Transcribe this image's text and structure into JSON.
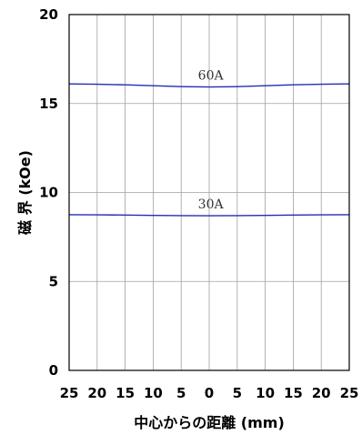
{
  "chart_data": {
    "type": "line",
    "xlabel": "中心からの距離 (mm)",
    "ylabel": "磁 界 (kOe)",
    "x_tick_labels": [
      "25",
      "20",
      "15",
      "10",
      "5",
      "0",
      "5",
      "10",
      "15",
      "20",
      "25"
    ],
    "x_ticks": [
      -25,
      -20,
      -15,
      -10,
      -5,
      0,
      5,
      10,
      15,
      20,
      25
    ],
    "xlim": [
      -25,
      25
    ],
    "ylim": [
      0,
      20
    ],
    "y_ticks": [
      0,
      5,
      10,
      15,
      20
    ],
    "y_tick_labels": [
      "0",
      "5",
      "10",
      "15",
      "20"
    ],
    "grid": true,
    "colors": {
      "series": "#1f2fb4",
      "grid": "#a0a0a0",
      "frame": "#000000"
    },
    "series": [
      {
        "name": "60A",
        "x": [
          -25,
          -20,
          -15,
          -10,
          -5,
          0,
          5,
          10,
          15,
          20,
          25
        ],
        "values": [
          16.1,
          16.08,
          16.05,
          16.0,
          15.95,
          15.93,
          15.95,
          16.0,
          16.05,
          16.08,
          16.1
        ]
      },
      {
        "name": "30A",
        "x": [
          -25,
          -20,
          -15,
          -10,
          -5,
          0,
          5,
          10,
          15,
          20,
          25
        ],
        "values": [
          8.75,
          8.74,
          8.73,
          8.71,
          8.7,
          8.69,
          8.7,
          8.71,
          8.73,
          8.74,
          8.75
        ]
      }
    ]
  }
}
